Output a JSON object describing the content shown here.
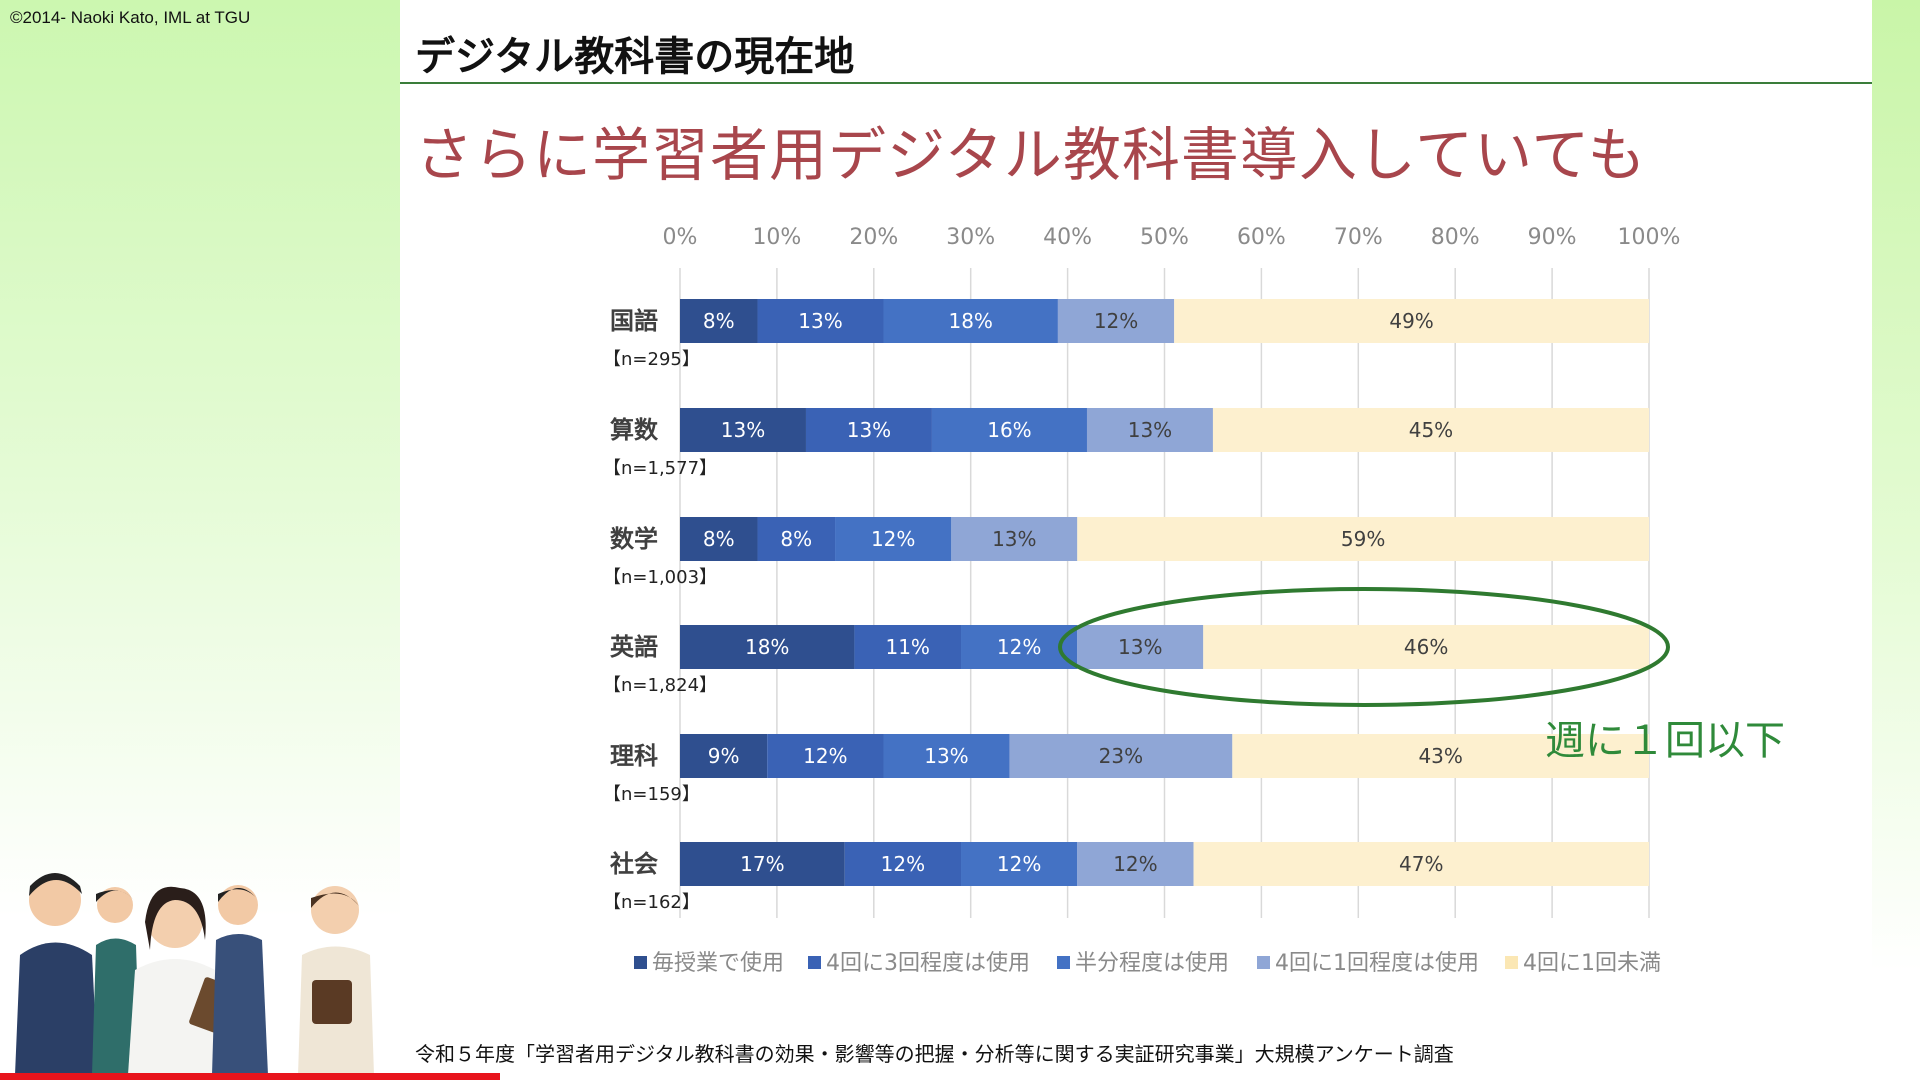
{
  "copyright": "©2014- Naoki Kato, IML at TGU",
  "heading": "デジタル教科書の現在地",
  "subtitle": "さらに学習者用デジタル教科書導入していても",
  "annotation": "週に１回以下",
  "source": "令和５年度「学習者用デジタル教科書の効果・影響等の把握・分析等に関する実証研究事業」大規模アンケート調査",
  "chart_data": {
    "type": "bar",
    "orientation": "horizontal-stacked-100",
    "xlim": [
      0,
      100
    ],
    "x_ticks": [
      "0%",
      "10%",
      "20%",
      "30%",
      "40%",
      "50%",
      "60%",
      "70%",
      "80%",
      "90%",
      "100%"
    ],
    "grid": true,
    "legend_position": "bottom",
    "categories": [
      "国語",
      "算数",
      "数学",
      "英語",
      "理科",
      "社会"
    ],
    "sample_sizes": [
      "【n=295】",
      "【n=1,577】",
      "【n=1,003】",
      "【n=1,824】",
      "【n=159】",
      "【n=162】"
    ],
    "series": [
      {
        "name": "毎授業で使用",
        "color": "#2f4f8f",
        "values": [
          8,
          13,
          8,
          18,
          9,
          17
        ]
      },
      {
        "name": "4回に3回程度は使用",
        "color": "#3a62b5",
        "values": [
          13,
          13,
          8,
          11,
          12,
          12
        ]
      },
      {
        "name": "半分程度は使用",
        "color": "#4472c4",
        "values": [
          18,
          16,
          12,
          12,
          13,
          12
        ]
      },
      {
        "name": "4回に1回程度は使用",
        "color": "#8fa6d6",
        "values": [
          12,
          13,
          13,
          13,
          23,
          12
        ]
      },
      {
        "name": "4回に1回未満",
        "color": "#fdf0cf",
        "values": [
          49,
          45,
          59,
          46,
          43,
          47
        ]
      }
    ],
    "highlight": {
      "category": "英語",
      "series": [
        "4回に1回程度は使用",
        "4回に1回未満"
      ],
      "color": "#2f7a30"
    }
  }
}
